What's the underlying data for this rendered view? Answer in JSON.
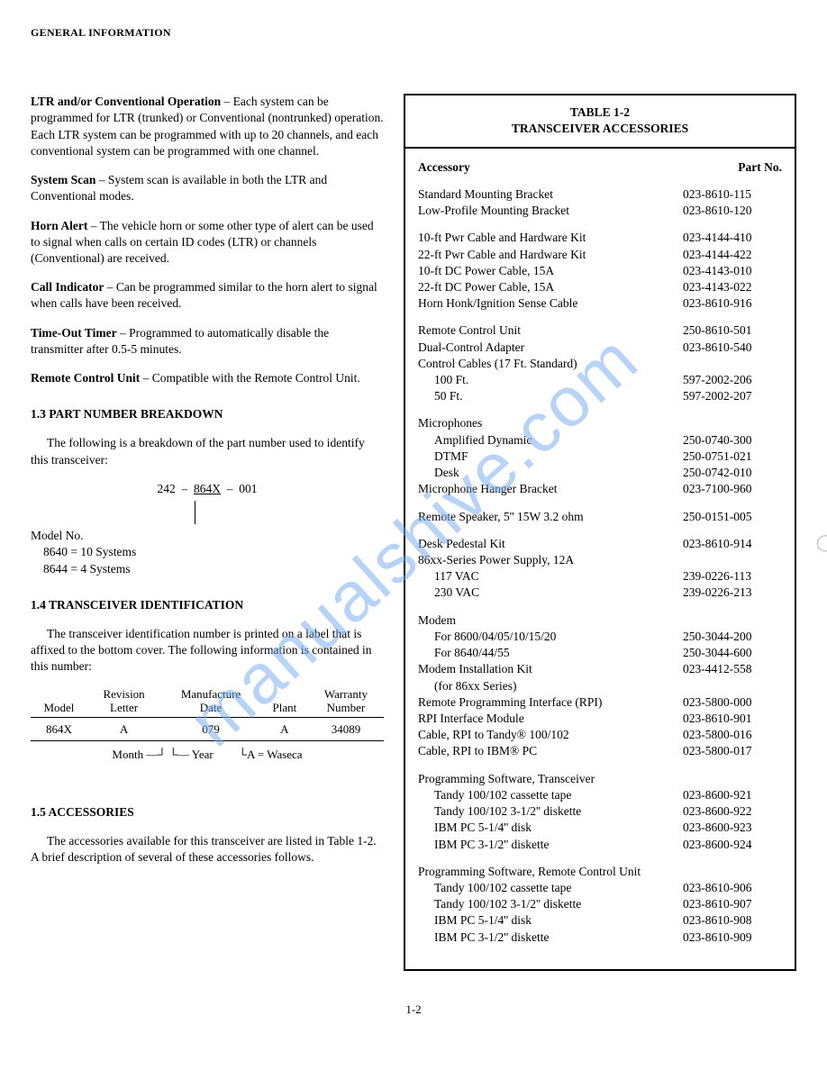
{
  "header": "GENERAL INFORMATION",
  "watermark": "manualshive.com",
  "page_number": "1-2",
  "left": {
    "features": [
      {
        "title": "LTR and/or Conventional Operation",
        "body": " – Each system can be programmed for LTR (trunked) or Conventional (nontrunked) operation. Each LTR system can be programmed with up to 20 channels, and each conventional system can be programmed with one channel."
      },
      {
        "title": "System Scan",
        "body": " – System scan is available in both the LTR and Conventional modes."
      },
      {
        "title": "Horn Alert",
        "body": " – The vehicle horn or some other type of alert can be used to signal when calls on certain ID codes (LTR) or channels (Conventional) are received."
      },
      {
        "title": "Call Indicator",
        "body": " – Can be programmed similar to the horn alert to signal when calls have been received."
      },
      {
        "title": "Time-Out Timer",
        "body": " – Programmed to automatically disable the transmitter after 0.5-5 minutes."
      },
      {
        "title": "Remote Control Unit",
        "body": " – Compatible with the Remote Control Unit."
      }
    ],
    "sec13": {
      "heading": "1.3 PART NUMBER BREAKDOWN",
      "intro": "The following is a breakdown of the part number used to identify this transceiver:",
      "pn": {
        "a": "242",
        "b": "864X",
        "c": "001"
      },
      "model_label": "Model No.",
      "models": [
        "8640 = 10 Systems",
        "8644 = 4 Systems"
      ]
    },
    "sec14": {
      "heading": "1.4 TRANSCEIVER IDENTIFICATION",
      "intro": "The transceiver identification number is printed on a label that is affixed to the bottom cover. The following information is contained in this number:",
      "cols": [
        {
          "top": "",
          "bottom": "Model"
        },
        {
          "top": "Revision",
          "bottom": "Letter"
        },
        {
          "top": "Manufacture",
          "bottom": "Date"
        },
        {
          "top": "",
          "bottom": "Plant"
        },
        {
          "top": "Warranty",
          "bottom": "Number"
        }
      ],
      "vals": [
        "864X",
        "A",
        "079",
        "A",
        "34089"
      ],
      "notes": [
        "Month —┘ └— Year",
        "└A = Waseca"
      ]
    },
    "sec15": {
      "heading": "1.5 ACCESSORIES",
      "intro": "The accessories available for this transceiver are listed in Table 1-2. A brief description of several of these accessories follows."
    }
  },
  "table": {
    "title1": "TABLE 1-2",
    "title2": "TRANSCEIVER ACCESSORIES",
    "head_acc": "Accessory",
    "head_part": "Part No.",
    "groups": [
      {
        "rows": [
          {
            "acc": "Standard Mounting Bracket",
            "part": "023-8610-115"
          },
          {
            "acc": "Low-Profile Mounting Bracket",
            "part": "023-8610-120"
          }
        ]
      },
      {
        "rows": [
          {
            "acc": "10-ft Pwr Cable and Hardware Kit",
            "part": "023-4144-410"
          },
          {
            "acc": "22-ft Pwr Cable and Hardware Kit",
            "part": "023-4144-422"
          },
          {
            "acc": "10-ft DC Power Cable, 15A",
            "part": "023-4143-010"
          },
          {
            "acc": "22-ft DC Power Cable, 15A",
            "part": "023-4143-022"
          },
          {
            "acc": "Horn Honk/Ignition Sense Cable",
            "part": "023-8610-916"
          }
        ]
      },
      {
        "rows": [
          {
            "acc": "Remote Control Unit",
            "part": "250-8610-501"
          },
          {
            "acc": "Dual-Control Adapter",
            "part": "023-8610-540"
          },
          {
            "acc": "Control Cables (17 Ft. Standard)",
            "part": ""
          },
          {
            "acc": "100 Ft.",
            "part": "597-2002-206",
            "sub": true
          },
          {
            "acc": "50 Ft.",
            "part": "597-2002-207",
            "sub": true
          }
        ]
      },
      {
        "rows": [
          {
            "acc": "Microphones",
            "part": ""
          },
          {
            "acc": "Amplified Dynamic",
            "part": "250-0740-300",
            "sub": true
          },
          {
            "acc": "DTMF",
            "part": "250-0751-021",
            "sub": true
          },
          {
            "acc": "Desk",
            "part": "250-0742-010",
            "sub": true
          },
          {
            "acc": "Microphone Hanger Bracket",
            "part": "023-7100-960"
          }
        ]
      },
      {
        "rows": [
          {
            "acc": "Remote Speaker, 5'' 15W 3.2 ohm",
            "part": "250-0151-005"
          }
        ]
      },
      {
        "rows": [
          {
            "acc": "Desk Pedestal Kit",
            "part": "023-8610-914"
          },
          {
            "acc": "86xx-Series Power Supply, 12A",
            "part": ""
          },
          {
            "acc": "117 VAC",
            "part": "239-0226-113",
            "sub": true
          },
          {
            "acc": "230 VAC",
            "part": "239-0226-213",
            "sub": true
          }
        ]
      },
      {
        "rows": [
          {
            "acc": "Modem",
            "part": ""
          },
          {
            "acc": "For 8600/04/05/10/15/20",
            "part": "250-3044-200",
            "sub": true
          },
          {
            "acc": "For 8640/44/55",
            "part": "250-3044-600",
            "sub": true
          },
          {
            "acc": "Modem Installation Kit",
            "part": "023-4412-558"
          },
          {
            "acc": "(for 86xx Series)",
            "part": "",
            "sub": true
          },
          {
            "acc": "Remote Programming Interface (RPI)",
            "part": "023-5800-000"
          },
          {
            "acc": "RPI Interface Module",
            "part": "023-8610-901"
          },
          {
            "acc": "Cable, RPI to Tandy® 100/102",
            "part": "023-5800-016"
          },
          {
            "acc": "Cable, RPI to IBM® PC",
            "part": "023-5800-017"
          }
        ]
      },
      {
        "rows": [
          {
            "acc": "Programming Software, Transceiver",
            "part": ""
          },
          {
            "acc": "Tandy 100/102 cassette tape",
            "part": "023-8600-921",
            "sub": true
          },
          {
            "acc": "Tandy 100/102 3-1/2'' diskette",
            "part": "023-8600-922",
            "sub": true
          },
          {
            "acc": "IBM PC 5-1/4'' disk",
            "part": "023-8600-923",
            "sub": true
          },
          {
            "acc": "IBM PC 3-1/2'' diskette",
            "part": "023-8600-924",
            "sub": true
          }
        ]
      },
      {
        "rows": [
          {
            "acc": "Programming Software, Remote Control Unit",
            "part": ""
          },
          {
            "acc": "Tandy 100/102 cassette tape",
            "part": "023-8610-906",
            "sub": true
          },
          {
            "acc": "Tandy 100/102 3-1/2'' diskette",
            "part": "023-8610-907",
            "sub": true
          },
          {
            "acc": "IBM PC 5-1/4'' disk",
            "part": "023-8610-908",
            "sub": true
          },
          {
            "acc": "IBM PC 3-1/2'' diskette",
            "part": "023-8610-909",
            "sub": true
          }
        ]
      }
    ]
  }
}
